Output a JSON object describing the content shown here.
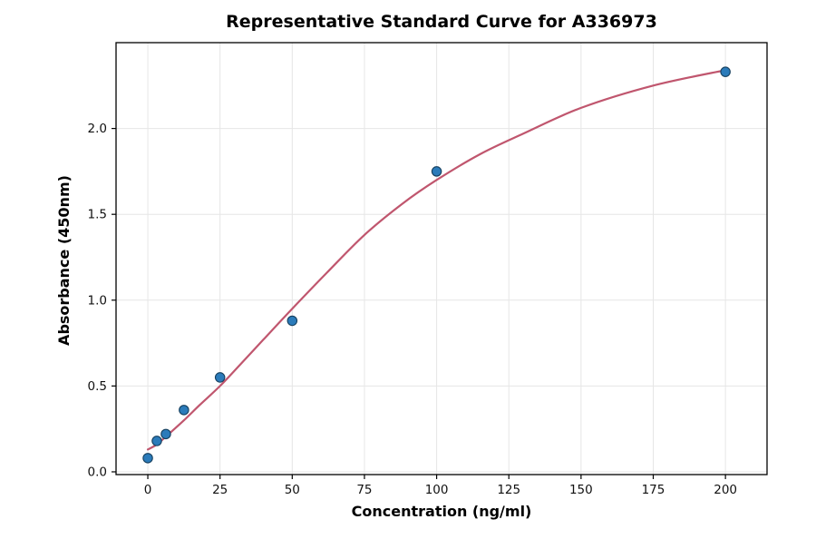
{
  "chart_data": {
    "type": "scatter",
    "title": "Representative Standard Curve for A336973",
    "xlabel": "Concentration (ng/ml)",
    "ylabel": "Absorbance (450nm)",
    "xlim": [
      -11,
      214.4
    ],
    "ylim": [
      -0.016,
      2.5
    ],
    "x_ticks": [
      0,
      25,
      50,
      75,
      100,
      125,
      150,
      175,
      200
    ],
    "x_tick_labels": [
      "0",
      "25",
      "50",
      "75",
      "100",
      "125",
      "150",
      "175",
      "200"
    ],
    "y_ticks": [
      0.0,
      0.5,
      1.0,
      1.5,
      2.0
    ],
    "y_tick_labels": [
      "0.0",
      "0.5",
      "1.0",
      "1.5",
      "2.0"
    ],
    "grid": true,
    "legend": "none",
    "style": {
      "grid_color": "#e6e6e6",
      "spine_color": "#000000",
      "background": "#ffffff"
    },
    "series": [
      {
        "name": "standards",
        "type": "scatter",
        "marker_color": "#2b7bba",
        "marker_edge": "#16405f",
        "x": [
          0,
          3.125,
          6.25,
          12.5,
          25,
          50,
          100,
          200
        ],
        "y": [
          0.08,
          0.18,
          0.22,
          0.36,
          0.55,
          0.88,
          1.75,
          2.33
        ]
      },
      {
        "name": "4pl-fit-curve",
        "type": "line",
        "color": "#c0566e",
        "x": [
          0,
          3,
          6.25,
          12.5,
          18,
          25,
          32,
          40,
          50,
          62,
          75,
          88,
          100,
          115,
          130,
          150,
          175,
          200
        ],
        "y": [
          0.13,
          0.158,
          0.205,
          0.3,
          0.39,
          0.5,
          0.625,
          0.77,
          0.95,
          1.16,
          1.38,
          1.56,
          1.7,
          1.85,
          1.97,
          2.12,
          2.25,
          2.34
        ]
      }
    ]
  }
}
